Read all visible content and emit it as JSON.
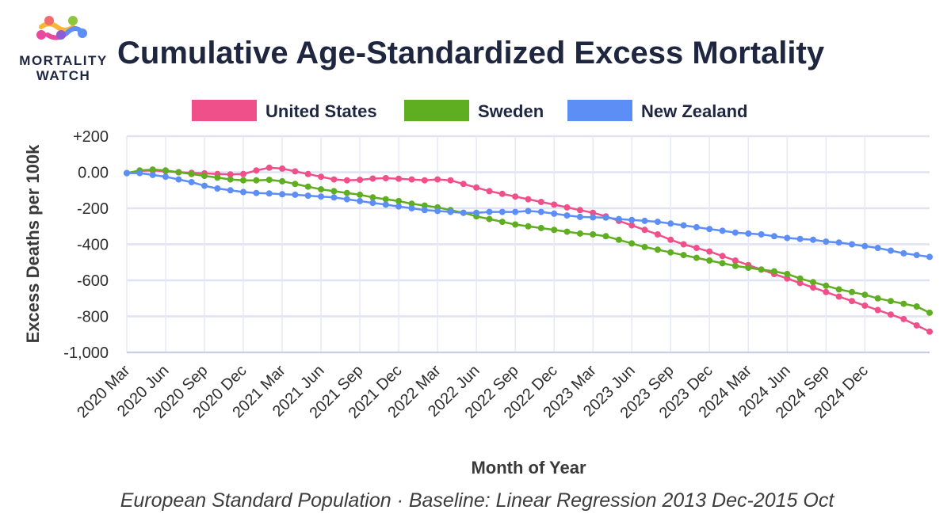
{
  "logo": {
    "line1": "MORTALITY",
    "line2": "WATCH"
  },
  "chart_data": {
    "type": "line",
    "title": "Cumulative Age-Standardized Excess Mortality",
    "xlabel": "Month of Year",
    "ylabel": "Excess Deaths per 100k",
    "caption": "European Standard Population · Baseline: Linear Regression 2013 Dec-2015 Oct",
    "ylim": [
      -1000,
      200
    ],
    "yticks": [
      200,
      0,
      -200,
      -400,
      -600,
      -800,
      -1000
    ],
    "ytick_labels": [
      "+200",
      "0.00",
      "-200",
      "-400",
      "-600",
      "-800",
      "-1,000"
    ],
    "x_tick_labels": [
      "2020 Mar",
      "2020 Jun",
      "2020 Sep",
      "2020 Dec",
      "2021 Mar",
      "2021 Jun",
      "2021 Sep",
      "2021 Dec",
      "2022 Mar",
      "2022 Jun",
      "2022 Sep",
      "2022 Dec",
      "2023 Mar",
      "2023 Jun",
      "2023 Sep",
      "2023 Dec",
      "2024 Mar",
      "2024 Jun",
      "2024 Sep",
      "2024 Dec"
    ],
    "x_start": "2020 Mar",
    "x_end": "2024 Dec",
    "grid": true,
    "legend_position": "top",
    "series": [
      {
        "name": "United States",
        "color": "#f0508a",
        "values": [
          -5,
          8,
          10,
          6,
          0,
          -3,
          -6,
          -10,
          -12,
          -10,
          10,
          25,
          20,
          5,
          -10,
          -25,
          -40,
          -45,
          -42,
          -35,
          -33,
          -36,
          -40,
          -45,
          -40,
          -45,
          -65,
          -85,
          -105,
          -120,
          -135,
          -150,
          -165,
          -180,
          -195,
          -210,
          -225,
          -245,
          -270,
          -295,
          -320,
          -345,
          -375,
          -400,
          -420,
          -440,
          -465,
          -490,
          -515,
          -540,
          -565,
          -590,
          -615,
          -640,
          -665,
          -690,
          -715,
          -740,
          -765,
          -790,
          -815,
          -850,
          -885
        ]
      },
      {
        "name": "Sweden",
        "color": "#5fad20",
        "values": [
          -5,
          10,
          15,
          10,
          0,
          -10,
          -20,
          -30,
          -40,
          -45,
          -45,
          -42,
          -50,
          -65,
          -80,
          -95,
          -105,
          -115,
          -125,
          -140,
          -150,
          -160,
          -175,
          -185,
          -195,
          -210,
          -225,
          -245,
          -260,
          -275,
          -290,
          -300,
          -310,
          -320,
          -330,
          -340,
          -345,
          -355,
          -375,
          -395,
          -415,
          -430,
          -445,
          -460,
          -475,
          -490,
          -505,
          -520,
          -530,
          -540,
          -550,
          -565,
          -590,
          -610,
          -630,
          -650,
          -665,
          -680,
          -700,
          -715,
          -730,
          -745,
          -780
        ]
      },
      {
        "name": "New Zealand",
        "color": "#5c8ef5",
        "values": [
          -5,
          -5,
          -15,
          -25,
          -40,
          -55,
          -75,
          -90,
          -100,
          -110,
          -115,
          -118,
          -122,
          -125,
          -130,
          -135,
          -140,
          -150,
          -160,
          -170,
          -180,
          -190,
          -200,
          -210,
          -215,
          -220,
          -225,
          -225,
          -220,
          -220,
          -220,
          -215,
          -220,
          -230,
          -240,
          -248,
          -250,
          -252,
          -260,
          -265,
          -270,
          -275,
          -285,
          -295,
          -305,
          -315,
          -325,
          -335,
          -340,
          -345,
          -355,
          -365,
          -370,
          -375,
          -385,
          -390,
          -400,
          -410,
          -420,
          -435,
          -450,
          -460,
          -470
        ]
      }
    ]
  }
}
